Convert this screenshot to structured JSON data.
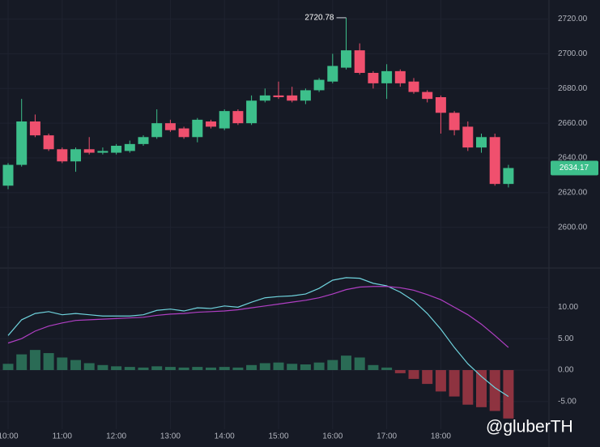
{
  "chart_data": [
    {
      "type": "candlestick",
      "x": [
        "10:00",
        "10:15",
        "10:30",
        "10:45",
        "11:00",
        "11:15",
        "11:30",
        "11:45",
        "12:00",
        "12:15",
        "12:30",
        "12:45",
        "13:00",
        "13:15",
        "13:30",
        "13:45",
        "14:00",
        "14:15",
        "14:30",
        "14:45",
        "15:00",
        "15:15",
        "15:30",
        "15:45",
        "16:00",
        "16:15",
        "16:30",
        "16:45",
        "17:00",
        "17:15",
        "17:30",
        "17:45",
        "18:00",
        "18:15",
        "18:30",
        "18:45",
        "19:00",
        "19:15"
      ],
      "open": [
        2624,
        2636,
        2661,
        2653,
        2645,
        2638,
        2645,
        2643,
        2643,
        2644,
        2648,
        2652,
        2660,
        2657,
        2652,
        2661,
        2657,
        2667,
        2660,
        2673,
        2676,
        2676,
        2673,
        2679,
        2684,
        2692,
        2702,
        2689,
        2683,
        2690,
        2684,
        2678,
        2675,
        2666,
        2658,
        2646,
        2652,
        2625
      ],
      "high": [
        2637,
        2674,
        2665,
        2654,
        2646,
        2646,
        2652,
        2646,
        2648,
        2650,
        2653,
        2668,
        2662,
        2658,
        2663,
        2662,
        2668,
        2668,
        2676,
        2680,
        2684,
        2681,
        2680,
        2686,
        2700,
        2720.78,
        2706,
        2690,
        2694,
        2691,
        2686,
        2679,
        2676,
        2667,
        2661,
        2654,
        2654,
        2636
      ],
      "low": [
        2622,
        2635,
        2652,
        2644,
        2637,
        2632,
        2642,
        2642,
        2642,
        2643,
        2647,
        2651,
        2655,
        2651,
        2649,
        2657,
        2656,
        2659,
        2659,
        2672,
        2674,
        2672,
        2671,
        2678,
        2683,
        2691,
        2688,
        2680,
        2674,
        2681,
        2677,
        2672,
        2654,
        2653,
        2644,
        2643,
        2624,
        2623
      ],
      "close": [
        2636,
        2661,
        2653,
        2645,
        2638,
        2645,
        2643,
        2644,
        2647,
        2648,
        2652,
        2660,
        2656,
        2652,
        2662,
        2658,
        2667,
        2660,
        2673,
        2676,
        2675,
        2673,
        2679,
        2685,
        2693,
        2702,
        2689,
        2683,
        2690,
        2683,
        2678,
        2674,
        2666,
        2656,
        2646,
        2652,
        2625,
        2634.17
      ],
      "xticks": [
        "10:00",
        "11:00",
        "12:00",
        "13:00",
        "14:00",
        "15:00",
        "16:00",
        "17:00",
        "18:00"
      ],
      "ylim": [
        2577,
        2731
      ],
      "yticks": [
        {
          "value": 2600,
          "label": "2600.00"
        },
        {
          "value": 2620,
          "label": "2620.00"
        },
        {
          "value": 2640,
          "label": "2640.00"
        },
        {
          "value": 2660,
          "label": "2660.00"
        },
        {
          "value": 2680,
          "label": "2680.00"
        },
        {
          "value": 2700,
          "label": "2700.00"
        },
        {
          "value": 2720,
          "label": "2720.00"
        }
      ],
      "up_color": "#3dbf8b",
      "down_color": "#f0506e",
      "grid": true,
      "annotations": {
        "high": 2720.78,
        "last": 2634.17
      },
      "watermark": "@gluberTH"
    },
    {
      "type": "macd",
      "histogram": [
        1,
        2.5,
        3.2,
        2.7,
        2,
        1.6,
        1.1,
        0.8,
        0.6,
        0.5,
        0.4,
        0.6,
        0.5,
        0.4,
        0.5,
        0.4,
        0.5,
        0.4,
        0.8,
        1.1,
        1.2,
        1.0,
        0.9,
        1.2,
        1.6,
        2.3,
        2.0,
        0.8,
        0.4,
        -0.5,
        -1.4,
        -2.2,
        -3.4,
        -4.2,
        -5.5,
        -5.9,
        -6.5,
        -7.7
      ],
      "series": [
        {
          "color": "#6fd3dd",
          "values": [
            5.5,
            8,
            9,
            9.3,
            8.8,
            9,
            8.8,
            8.6,
            8.6,
            8.6,
            8.8,
            9.5,
            9.7,
            9.4,
            9.9,
            9.8,
            10.2,
            10,
            10.8,
            11.5,
            11.7,
            11.8,
            12.1,
            13,
            14.3,
            14.7,
            14.6,
            13.8,
            13.4,
            12.4,
            11,
            9,
            6.5,
            3.6,
            1,
            -1,
            -2.8,
            -4.2
          ]
        },
        {
          "color": "#b03fc4",
          "values": [
            4.3,
            5,
            6.2,
            7,
            7.5,
            7.9,
            8,
            8.1,
            8.2,
            8.3,
            8.4,
            8.7,
            8.9,
            9,
            9.2,
            9.3,
            9.4,
            9.6,
            9.9,
            10.2,
            10.5,
            10.8,
            11.1,
            11.5,
            12.1,
            12.8,
            13.2,
            13.3,
            13.3,
            13.1,
            12.7,
            12,
            11.2,
            10,
            8.8,
            7.3,
            5.5,
            3.6
          ]
        }
      ],
      "hist_up_color": "#2a6b55",
      "hist_down_color": "#8e3340",
      "ylim": [
        -9.4,
        16.1
      ],
      "yticks": [
        {
          "value": -5,
          "label": "-5.00"
        },
        {
          "value": 0,
          "label": "0.00"
        },
        {
          "value": 5,
          "label": "5.00"
        },
        {
          "value": 10,
          "label": "10.00"
        }
      ]
    }
  ]
}
